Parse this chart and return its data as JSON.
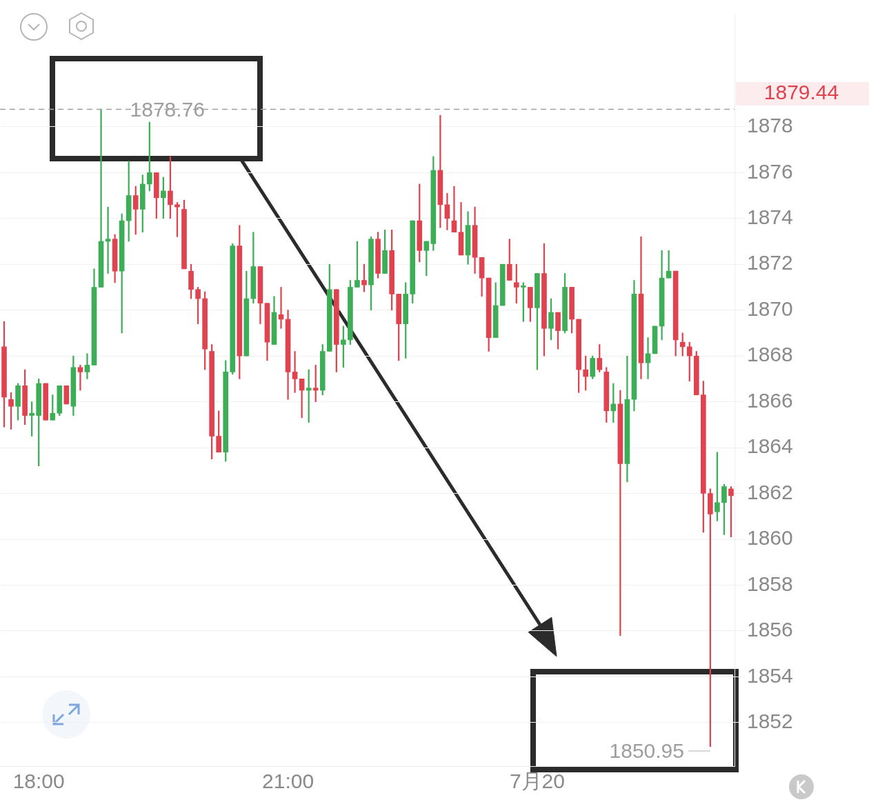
{
  "chart_data": {
    "type": "candlestick",
    "categories": [
      null,
      null,
      null,
      null,
      null,
      "18:00",
      null,
      null,
      null,
      null,
      null,
      null,
      null,
      null,
      null,
      null,
      null,
      null,
      null,
      null,
      null,
      null,
      null,
      null,
      null,
      null,
      null,
      null,
      null,
      null,
      null,
      null,
      null,
      null,
      null,
      null,
      null,
      null,
      null,
      null,
      null,
      "21:00",
      null,
      null,
      null,
      null,
      null,
      null,
      null,
      null,
      null,
      null,
      null,
      null,
      null,
      null,
      null,
      null,
      null,
      null,
      null,
      null,
      null,
      null,
      null,
      null,
      null,
      null,
      null,
      null,
      null,
      null,
      null,
      null,
      null,
      null,
      null,
      "7月20",
      null,
      null,
      null,
      null,
      null,
      null,
      null,
      null,
      null,
      null,
      null,
      null,
      null,
      null,
      null,
      null,
      null,
      null,
      null,
      null,
      null,
      null,
      null,
      null,
      null,
      null,
      null,
      null
    ],
    "ohlc": [
      [
        1868.4,
        1869.5,
        1864.9,
        1866.2
      ],
      [
        1866.1,
        1866.4,
        1864.8,
        1865.8
      ],
      [
        1865.8,
        1866.8,
        1865.2,
        1866.7
      ],
      [
        1866.7,
        1867.4,
        1865.0,
        1865.4
      ],
      [
        1865.4,
        1866.0,
        1864.5,
        1865.5
      ],
      [
        1865.4,
        1867.0,
        1863.2,
        1866.8
      ],
      [
        1866.8,
        1866.8,
        1865.2,
        1865.2
      ],
      [
        1865.2,
        1866.3,
        1865.2,
        1865.5
      ],
      [
        1865.5,
        1866.7,
        1865.4,
        1866.7
      ],
      [
        1866.7,
        1866.7,
        1865.9,
        1865.9
      ],
      [
        1865.8,
        1868.0,
        1865.4,
        1867.5
      ],
      [
        1867.5,
        1867.6,
        1866.5,
        1867.3
      ],
      [
        1867.3,
        1868.1,
        1867.0,
        1867.6
      ],
      [
        1867.6,
        1871.8,
        1867.6,
        1871.0
      ],
      [
        1871.0,
        1878.76,
        1871.0,
        1873.0
      ],
      [
        1873.0,
        1874.5,
        1871.6,
        1873.1
      ],
      [
        1873.1,
        1873.3,
        1871.2,
        1871.7
      ],
      [
        1871.7,
        1874.2,
        1869.0,
        1873.9
      ],
      [
        1873.9,
        1876.5,
        1873.0,
        1875.0
      ],
      [
        1875.0,
        1875.4,
        1873.3,
        1874.4
      ],
      [
        1874.4,
        1875.9,
        1873.4,
        1875.5
      ],
      [
        1875.5,
        1878.2,
        1875.2,
        1876.0
      ],
      [
        1876.0,
        1876.0,
        1874.0,
        1874.9
      ],
      [
        1874.9,
        1875.8,
        1874.0,
        1875.2
      ],
      [
        1875.2,
        1876.7,
        1874.0,
        1874.6
      ],
      [
        1874.6,
        1874.7,
        1873.2,
        1874.5
      ],
      [
        1874.4,
        1874.8,
        1871.8,
        1871.8
      ],
      [
        1871.7,
        1872.0,
        1870.5,
        1870.9
      ],
      [
        1870.9,
        1871.0,
        1869.4,
        1870.5
      ],
      [
        1870.5,
        1870.8,
        1867.4,
        1868.3
      ],
      [
        1868.2,
        1868.5,
        1863.5,
        1864.5
      ],
      [
        1864.5,
        1865.6,
        1863.8,
        1863.8
      ],
      [
        1863.8,
        1867.8,
        1863.4,
        1867.3
      ],
      [
        1867.3,
        1872.9,
        1867.2,
        1872.8
      ],
      [
        1872.8,
        1873.7,
        1867.0,
        1868.0
      ],
      [
        1868.0,
        1871.7,
        1868.0,
        1870.5
      ],
      [
        1870.5,
        1873.4,
        1870.3,
        1871.9
      ],
      [
        1871.9,
        1871.9,
        1869.4,
        1870.3
      ],
      [
        1870.3,
        1870.3,
        1867.8,
        1868.6
      ],
      [
        1868.5,
        1870.6,
        1868.5,
        1869.9
      ],
      [
        1869.8,
        1871.0,
        1869.2,
        1869.6
      ],
      [
        1869.6,
        1870.0,
        1866.1,
        1867.3
      ],
      [
        1867.3,
        1868.2,
        1866.4,
        1867.0
      ],
      [
        1867.0,
        1867.0,
        1865.3,
        1866.5
      ],
      [
        1866.5,
        1867.4,
        1865.1,
        1866.6
      ],
      [
        1866.6,
        1867.6,
        1866.0,
        1866.5
      ],
      [
        1866.5,
        1868.5,
        1866.3,
        1868.2
      ],
      [
        1868.2,
        1872.0,
        1868.2,
        1870.9
      ],
      [
        1870.9,
        1870.9,
        1867.3,
        1868.5
      ],
      [
        1868.5,
        1869.3,
        1867.5,
        1868.7
      ],
      [
        1868.7,
        1871.3,
        1868.5,
        1871.0
      ],
      [
        1871.0,
        1873.0,
        1871.0,
        1871.3
      ],
      [
        1871.3,
        1872.0,
        1870.8,
        1871.1
      ],
      [
        1871.1,
        1873.2,
        1870.0,
        1873.1
      ],
      [
        1873.1,
        1873.4,
        1871.4,
        1871.6
      ],
      [
        1871.6,
        1873.5,
        1871.6,
        1872.6
      ],
      [
        1872.6,
        1873.5,
        1870.0,
        1870.7
      ],
      [
        1870.7,
        1870.7,
        1867.8,
        1869.4
      ],
      [
        1869.4,
        1871.2,
        1867.9,
        1870.7
      ],
      [
        1870.7,
        1873.9,
        1870.3,
        1873.9
      ],
      [
        1873.9,
        1875.5,
        1872.1,
        1872.6
      ],
      [
        1872.6,
        1873.0,
        1871.5,
        1873.0
      ],
      [
        1872.9,
        1876.7,
        1872.6,
        1876.1
      ],
      [
        1876.1,
        1878.5,
        1873.6,
        1874.6
      ],
      [
        1874.6,
        1875.1,
        1873.5,
        1874.0
      ],
      [
        1873.9,
        1875.4,
        1873.4,
        1873.4
      ],
      [
        1873.4,
        1874.7,
        1872.4,
        1872.4
      ],
      [
        1872.4,
        1874.3,
        1872.0,
        1873.7
      ],
      [
        1873.7,
        1874.5,
        1871.6,
        1872.3
      ],
      [
        1872.3,
        1872.3,
        1870.6,
        1871.4
      ],
      [
        1871.4,
        1871.4,
        1868.2,
        1868.8
      ],
      [
        1868.8,
        1871.2,
        1868.8,
        1870.2
      ],
      [
        1870.2,
        1872.0,
        1870.2,
        1872.0
      ],
      [
        1872.0,
        1873.1,
        1871.3,
        1871.3
      ],
      [
        1871.2,
        1872.0,
        1870.3,
        1871.0
      ],
      [
        1871.0,
        1871.2,
        1869.5,
        1871.0
      ],
      [
        1871.0,
        1871.0,
        1869.5,
        1870.1
      ],
      [
        1870.1,
        1871.6,
        1867.4,
        1871.6
      ],
      [
        1871.6,
        1872.9,
        1868.0,
        1869.2
      ],
      [
        1869.2,
        1870.5,
        1868.7,
        1869.9
      ],
      [
        1869.9,
        1869.9,
        1868.3,
        1869.1
      ],
      [
        1869.1,
        1871.6,
        1869.0,
        1871.0
      ],
      [
        1871.0,
        1871.0,
        1869.0,
        1869.6
      ],
      [
        1869.6,
        1869.6,
        1866.4,
        1867.4
      ],
      [
        1867.4,
        1868.0,
        1866.5,
        1867.1
      ],
      [
        1867.1,
        1868.0,
        1867.0,
        1867.9
      ],
      [
        1867.9,
        1868.5,
        1867.3,
        1867.4
      ],
      [
        1867.3,
        1867.5,
        1865.1,
        1865.6
      ],
      [
        1865.6,
        1866.8,
        1865.1,
        1865.9
      ],
      [
        1865.9,
        1866.5,
        1855.8,
        1863.3
      ],
      [
        1863.3,
        1868.0,
        1862.5,
        1866.1
      ],
      [
        1866.1,
        1871.3,
        1865.6,
        1870.7
      ],
      [
        1870.7,
        1873.2,
        1867.0,
        1867.7
      ],
      [
        1867.7,
        1868.8,
        1867.0,
        1868.1
      ],
      [
        1868.1,
        1869.3,
        1868.1,
        1869.3
      ],
      [
        1869.3,
        1872.6,
        1868.7,
        1871.4
      ],
      [
        1871.4,
        1872.6,
        1871.4,
        1871.7
      ],
      [
        1871.7,
        1871.7,
        1868.0,
        1868.7
      ],
      [
        1868.6,
        1869.0,
        1868.0,
        1868.4
      ],
      [
        1868.4,
        1868.6,
        1866.9,
        1868.0
      ],
      [
        1868.0,
        1868.2,
        1866.3,
        1866.3
      ],
      [
        1866.3,
        1866.9,
        1860.3,
        1862.0
      ],
      [
        1862.0,
        1862.2,
        1850.95,
        1861.1
      ],
      [
        1861.2,
        1863.8,
        1860.8,
        1861.6
      ],
      [
        1861.6,
        1862.4,
        1860.2,
        1862.3
      ],
      [
        1862.2,
        1862.3,
        1860.1,
        1861.9
      ]
    ],
    "colors": [
      "#e04350",
      "#e04350",
      "#3dae57",
      "#e04350",
      "#3dae57",
      "#3dae57",
      "#e04350",
      "#3dae57",
      "#3dae57",
      "#e04350",
      "#3dae57",
      "#e04350",
      "#3dae57",
      "#3dae57",
      "#3dae57",
      "#3dae57",
      "#e04350",
      "#3dae57",
      "#3dae57",
      "#e04350",
      "#3dae57",
      "#3dae57",
      "#e04350",
      "#3dae57",
      "#e04350",
      "#e04350",
      "#e04350",
      "#e04350",
      "#e04350",
      "#e04350",
      "#e04350",
      "#e04350",
      "#3dae57",
      "#3dae57",
      "#e04350",
      "#3dae57",
      "#3dae57",
      "#e04350",
      "#e04350",
      "#3dae57",
      "#e04350",
      "#e04350",
      "#e04350",
      "#e04350",
      "#3dae57",
      "#e04350",
      "#3dae57",
      "#3dae57",
      "#e04350",
      "#3dae57",
      "#3dae57",
      "#3dae57",
      "#e04350",
      "#3dae57",
      "#e04350",
      "#3dae57",
      "#e04350",
      "#e04350",
      "#3dae57",
      "#3dae57",
      "#e04350",
      "#3dae57",
      "#3dae57",
      "#e04350",
      "#e04350",
      "#e04350",
      "#e04350",
      "#3dae57",
      "#e04350",
      "#e04350",
      "#e04350",
      "#3dae57",
      "#3dae57",
      "#e04350",
      "#e04350",
      "#3dae57",
      "#e04350",
      "#3dae57",
      "#e04350",
      "#3dae57",
      "#e04350",
      "#3dae57",
      "#e04350",
      "#e04350",
      "#e04350",
      "#3dae57",
      "#e04350",
      "#e04350",
      "#3dae57",
      "#e04350",
      "#3dae57",
      "#3dae57",
      "#e04350",
      "#3dae57",
      "#3dae57",
      "#3dae57",
      "#3dae57",
      "#e04350",
      "#e04350",
      "#e04350",
      "#e04350",
      "#e04350",
      "#e04350",
      "#3dae57",
      "#3dae57",
      "#e04350"
    ],
    "ylim": [
      1850.1,
      1882.9
    ],
    "yticks": [
      1852,
      1854,
      1856,
      1858,
      1860,
      1862,
      1864,
      1866,
      1868,
      1870,
      1872,
      1874,
      1876,
      1878
    ],
    "grid": "y",
    "legend": false,
    "ref_lines": [
      {
        "axis": "y",
        "value": 1878.76,
        "color": "#9e9e9e",
        "line_style": "dashed"
      }
    ],
    "annotations": [
      {
        "text": "1878.76",
        "y": 1878.76
      },
      "1850.95",
      "1879.44"
    ]
  }
}
